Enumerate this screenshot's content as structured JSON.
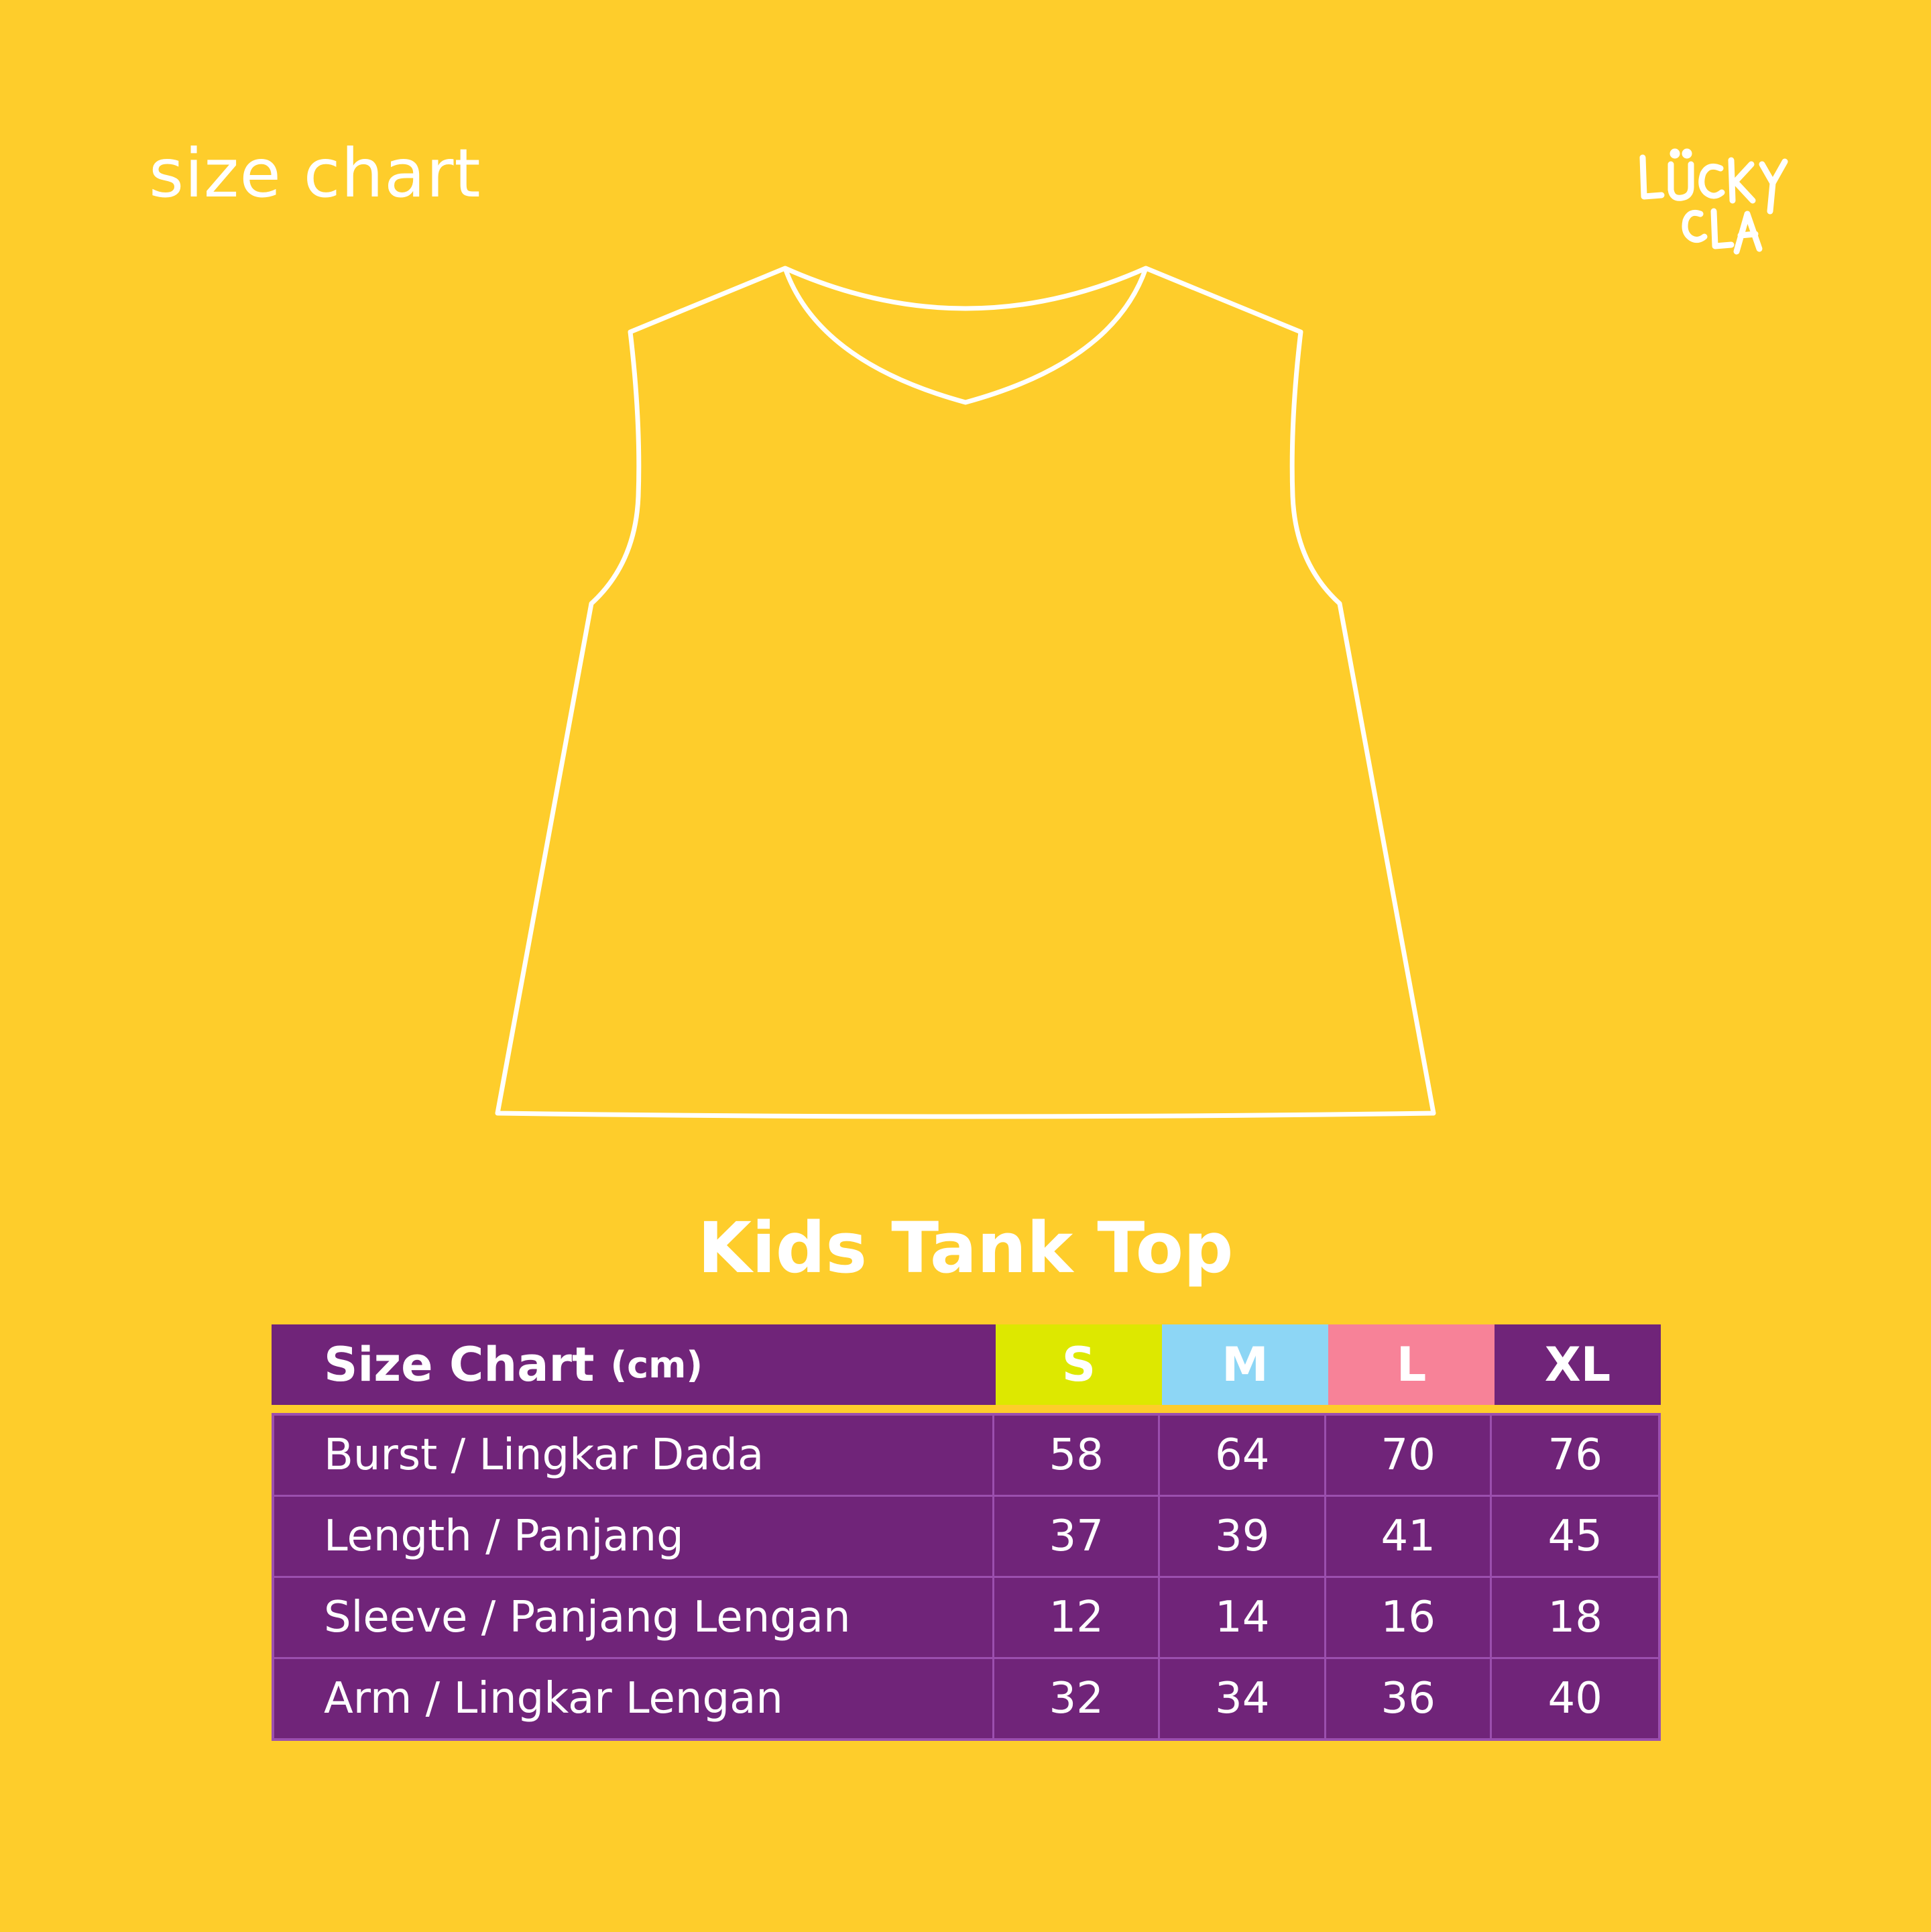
{
  "page_label": "size chart",
  "logo": {
    "line1": "LÜCKY",
    "line2": "CLA"
  },
  "garment_icon": "tank-top-outline-icon",
  "product_title": "Kids Tank Top",
  "table": {
    "header_label": "Size Chart",
    "header_unit": "(cm)",
    "sizes": [
      {
        "label": "S",
        "color": "#DDE800"
      },
      {
        "label": "M",
        "color": "#8DD6F5"
      },
      {
        "label": "L",
        "color": "#F78298"
      },
      {
        "label": "XL",
        "color": "#702479"
      }
    ],
    "rows": [
      {
        "label": "Burst / Lingkar Dada",
        "values": [
          "58",
          "64",
          "70",
          "76"
        ]
      },
      {
        "label": "Length / Panjang",
        "values": [
          "37",
          "39",
          "41",
          "45"
        ]
      },
      {
        "label": "Sleeve / Panjang Lengan",
        "values": [
          "12",
          "14",
          "16",
          "18"
        ]
      },
      {
        "label": "Arm / Lingkar Lengan",
        "values": [
          "32",
          "34",
          "36",
          "40"
        ]
      }
    ]
  },
  "colors": {
    "background": "#FECD2B",
    "table_purple": "#702479",
    "text": "#FFFFFF"
  }
}
